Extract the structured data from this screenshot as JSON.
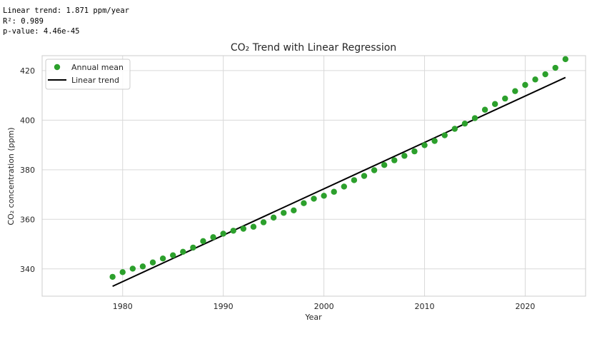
{
  "stats": {
    "trend": "Linear trend: 1.871 ppm/year",
    "r2": "R²: 0.989",
    "pvalue": "p-value: 4.46e-45"
  },
  "chart_data": {
    "type": "scatter",
    "title": "CO₂ Trend with Linear Regression",
    "xlabel": "Year",
    "ylabel": "CO₂ concentration (ppm)",
    "xlim": [
      1972,
      2026
    ],
    "ylim": [
      329,
      426
    ],
    "xticks": [
      1980,
      1990,
      2000,
      2010,
      2020
    ],
    "yticks": [
      340,
      360,
      380,
      400,
      420
    ],
    "grid": true,
    "legend": {
      "placement": "top-left",
      "entries": [
        "Annual mean",
        "Linear trend"
      ]
    },
    "colors": {
      "points": "#2ca02c",
      "line": "#000000",
      "grid": "#d9d9d9",
      "frame": "#cccccc"
    },
    "series": [
      {
        "name": "Annual mean",
        "kind": "scatter",
        "x": [
          1979,
          1980,
          1981,
          1982,
          1983,
          1984,
          1985,
          1986,
          1987,
          1988,
          1989,
          1990,
          1991,
          1992,
          1993,
          1994,
          1995,
          1996,
          1997,
          1998,
          1999,
          2000,
          2001,
          2002,
          2003,
          2004,
          2005,
          2006,
          2007,
          2008,
          2009,
          2010,
          2011,
          2012,
          2013,
          2014,
          2015,
          2016,
          2017,
          2018,
          2019,
          2020,
          2021,
          2022,
          2023,
          2024
        ],
        "y": [
          336.8,
          338.7,
          340.1,
          341.0,
          342.6,
          344.2,
          345.5,
          346.9,
          348.6,
          351.2,
          352.8,
          354.2,
          355.4,
          356.2,
          357.0,
          358.8,
          360.7,
          362.6,
          363.6,
          366.5,
          368.3,
          369.5,
          371.1,
          373.2,
          375.8,
          377.5,
          379.8,
          381.9,
          383.8,
          385.6,
          387.4,
          389.9,
          391.6,
          393.9,
          396.5,
          398.6,
          400.8,
          404.2,
          406.5,
          408.7,
          411.7,
          414.2,
          416.4,
          418.5,
          421.1,
          424.6
        ]
      },
      {
        "name": "Linear trend",
        "kind": "line",
        "x": [
          1979,
          2024
        ],
        "y": [
          333.0,
          417.2
        ]
      }
    ]
  }
}
